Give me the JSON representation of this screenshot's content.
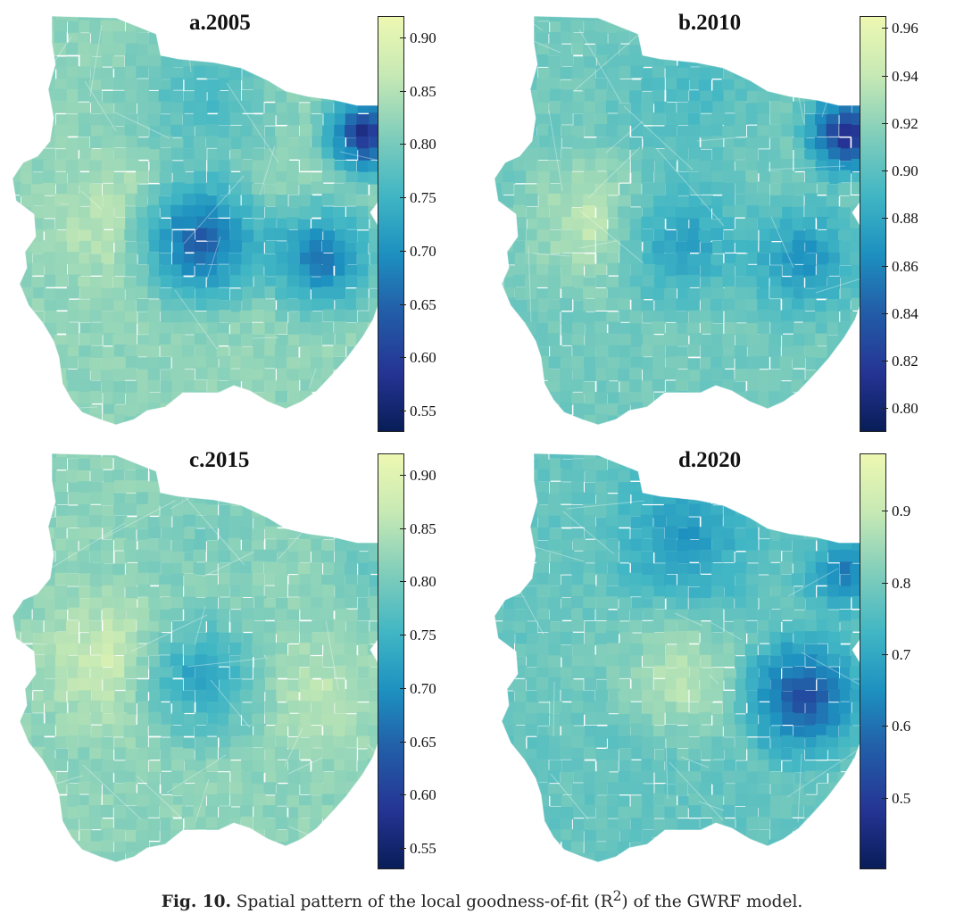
{
  "panels": [
    {
      "title": "a.2005",
      "ticks": [
        "0.90",
        "0.85",
        "0.80",
        "0.75",
        "0.70",
        "0.65",
        "0.60",
        "0.55"
      ],
      "range": [
        0.53,
        0.92
      ],
      "center": 0.62,
      "east": 0.65,
      "ne": 0.55,
      "north": 0.75,
      "west": 0.86,
      "outer": 0.82
    },
    {
      "title": "b.2010",
      "ticks": [
        "0.96",
        "0.94",
        "0.92",
        "0.90",
        "0.88",
        "0.86",
        "0.84",
        "0.82",
        "0.80"
      ],
      "range": [
        0.79,
        0.965
      ],
      "center": 0.87,
      "east": 0.86,
      "ne": 0.8,
      "north": 0.89,
      "west": 0.94,
      "outer": 0.91
    },
    {
      "title": "c.2015",
      "ticks": [
        "0.90",
        "0.85",
        "0.80",
        "0.75",
        "0.70",
        "0.65",
        "0.60",
        "0.55"
      ],
      "range": [
        0.53,
        0.92
      ],
      "center": 0.71,
      "east": 0.86,
      "ne": 0.78,
      "north": 0.8,
      "west": 0.88,
      "outer": 0.82
    },
    {
      "title": "d.2020",
      "ticks": [
        "0.9",
        "0.8",
        "0.7",
        "0.6",
        "0.5"
      ],
      "range": [
        0.4,
        0.98
      ],
      "center": 0.9,
      "east": 0.5,
      "ne": 0.6,
      "north": 0.65,
      "west": 0.8,
      "outer": 0.78
    }
  ],
  "caption": {
    "label": "Fig. 10.",
    "text_before": " Spatial pattern of the local goodness-of-fit (R",
    "superscript": "2",
    "text_after": ") of the GWRF model."
  },
  "colormap": [
    "#081d58",
    "#253494",
    "#225ea8",
    "#1d91c0",
    "#41b6c4",
    "#7fcdbb",
    "#c7e9b4",
    "#edf8b1"
  ]
}
